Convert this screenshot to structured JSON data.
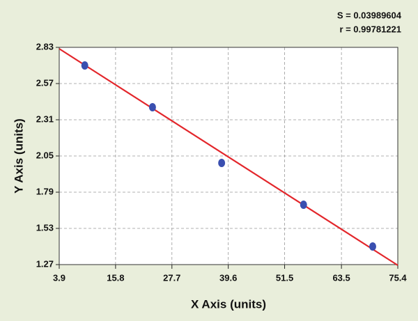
{
  "chart_data": {
    "type": "scatter",
    "annotations": [
      "S = 0.03989604",
      "r = 0.99781221"
    ],
    "xlabel": "X Axis (units)",
    "ylabel": "Y Axis (units)",
    "xlim": [
      3.9,
      75.4
    ],
    "ylim": [
      1.27,
      2.83
    ],
    "xticks": [
      3.9,
      15.8,
      27.7,
      39.6,
      51.5,
      63.5,
      75.4
    ],
    "yticks": [
      1.27,
      1.53,
      1.79,
      2.05,
      2.31,
      2.57,
      2.83
    ],
    "grid": true,
    "series": [
      {
        "x": [
          9.3,
          23.6,
          38.2,
          55.5,
          70.1
        ],
        "values": [
          2.7,
          2.4,
          2.0,
          1.7,
          1.4
        ],
        "color": "#3a4fb0"
      }
    ],
    "fit": {
      "x": [
        3.9,
        75.4
      ],
      "values": [
        2.82,
        1.265
      ],
      "color": "#e3262b"
    }
  }
}
